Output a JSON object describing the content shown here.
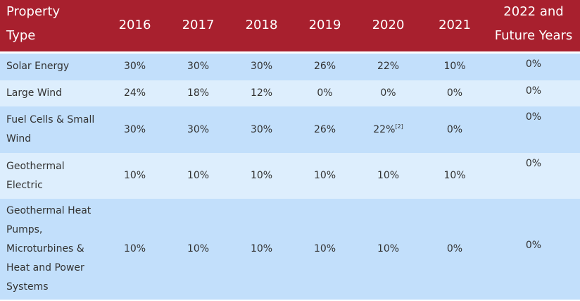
{
  "header": {
    "property_type": [
      "Property",
      "Type"
    ],
    "years": [
      "2016",
      "2017",
      "2018",
      "2019",
      "2020",
      "2021"
    ],
    "future": [
      "2022 and",
      "Future Years"
    ]
  },
  "rows": [
    {
      "label": "Solar Energy",
      "values": [
        "30%",
        "30%",
        "30%",
        "26%",
        "22%",
        "10%"
      ],
      "future": "0%",
      "shade": "dark"
    },
    {
      "label": "Large Wind",
      "values": [
        "24%",
        "18%",
        "12%",
        "0%",
        "0%",
        "0%"
      ],
      "future": "0%",
      "shade": "light"
    },
    {
      "label": "Fuel Cells & Small Wind",
      "values": [
        "30%",
        "30%",
        "30%",
        "26%",
        "22%",
        "0%"
      ],
      "note_2020": "[2]",
      "future": "0%",
      "shade": "dark"
    },
    {
      "label": "Geothermal Electric",
      "values": [
        "10%",
        "10%",
        "10%",
        "10%",
        "10%",
        "10%"
      ],
      "future": "0%",
      "shade": "light"
    },
    {
      "label": "Geothermal Heat Pumps, Microturbines & Heat and Power Systems",
      "values": [
        "10%",
        "10%",
        "10%",
        "10%",
        "10%",
        "0%"
      ],
      "future": "0%",
      "shade": "dark"
    }
  ],
  "colors": {
    "header_bg": "#a8202e",
    "row_dark": "#c2dffb",
    "row_light": "#ddeefd"
  }
}
